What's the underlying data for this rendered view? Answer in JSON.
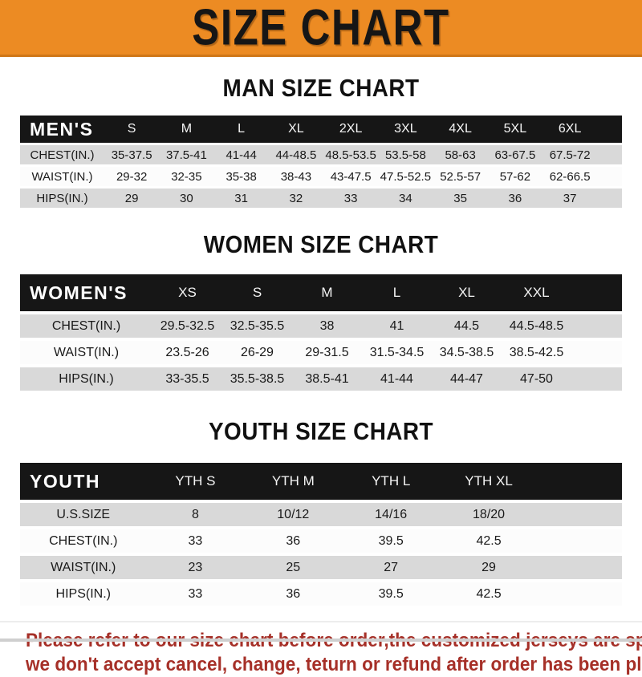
{
  "banner": {
    "title": "SIZE CHART"
  },
  "colors": {
    "banner_bg": "#EC8B23",
    "header_bar": "#161616",
    "row_stripe": "#D9D9D9",
    "footer_text": "#A63028"
  },
  "sections": [
    {
      "heading": "MAN SIZE CHART",
      "table": {
        "label": "MEN'S",
        "columns": [
          "S",
          "M",
          "L",
          "XL",
          "2XL",
          "3XL",
          "4XL",
          "5XL",
          "6XL"
        ],
        "rows": [
          {
            "label": "CHEST(IN.)",
            "values": [
              "35-37.5",
              "37.5-41",
              "41-44",
              "44-48.5",
              "48.5-53.5",
              "53.5-58",
              "58-63",
              "63-67.5",
              "67.5-72"
            ]
          },
          {
            "label": "WAIST(IN.)",
            "values": [
              "29-32",
              "32-35",
              "35-38",
              "38-43",
              "43-47.5",
              "47.5-52.5",
              "52.5-57",
              "57-62",
              "62-66.5"
            ]
          },
          {
            "label": "HIPS(IN.)",
            "values": [
              "29",
              "30",
              "31",
              "32",
              "33",
              "34",
              "35",
              "36",
              "37"
            ]
          }
        ]
      }
    },
    {
      "heading": "WOMEN SIZE CHART",
      "table": {
        "label": "WOMEN'S",
        "columns": [
          "XS",
          "S",
          "M",
          "L",
          "XL",
          "XXL"
        ],
        "rows": [
          {
            "label": "CHEST(IN.)",
            "values": [
              "29.5-32.5",
              "32.5-35.5",
              "38",
              "41",
              "44.5",
              "44.5-48.5"
            ]
          },
          {
            "label": "WAIST(IN.)",
            "values": [
              "23.5-26",
              "26-29",
              "29-31.5",
              "31.5-34.5",
              "34.5-38.5",
              "38.5-42.5"
            ]
          },
          {
            "label": "HIPS(IN.)",
            "values": [
              "33-35.5",
              "35.5-38.5",
              "38.5-41",
              "41-44",
              "44-47",
              "47-50"
            ]
          }
        ]
      }
    },
    {
      "heading": "YOUTH SIZE CHART",
      "table": {
        "label": "YOUTH",
        "columns": [
          "YTH S",
          "YTH M",
          "YTH L",
          "YTH XL"
        ],
        "rows": [
          {
            "label": "U.S.SIZE",
            "values": [
              "8",
              "10/12",
              "14/16",
              "18/20"
            ]
          },
          {
            "label": "CHEST(IN.)",
            "values": [
              "33",
              "36",
              "39.5",
              "42.5"
            ]
          },
          {
            "label": "WAIST(IN.)",
            "values": [
              "23",
              "25",
              "27",
              "29"
            ]
          },
          {
            "label": "HIPS(IN.)",
            "values": [
              "33",
              "36",
              "39.5",
              "42.5"
            ]
          }
        ]
      }
    }
  ],
  "footer": {
    "lines": [
      "Please refer to our size chart before order,the customized jerseys are special products,",
      "we don't accept cancel, change, teturn or refund after order has been placed!"
    ]
  }
}
